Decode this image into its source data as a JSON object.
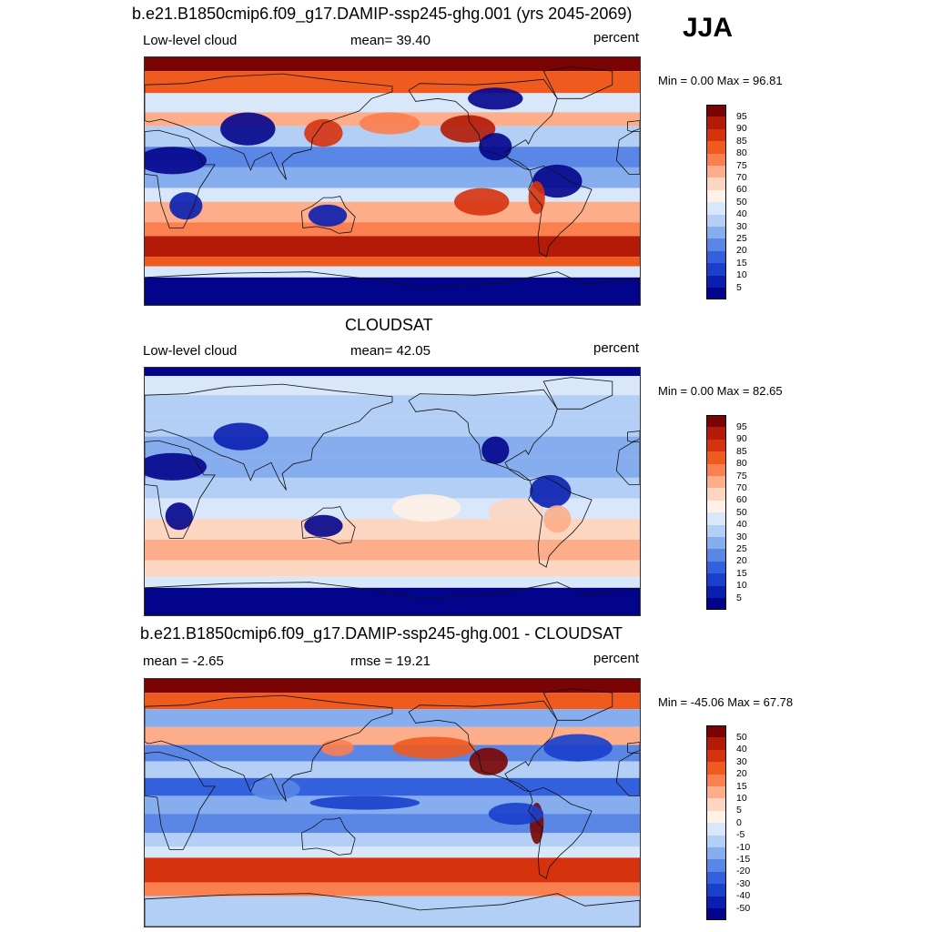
{
  "season": "JJA",
  "panels": [
    {
      "title": "b.e21.B1850cmip6.f09_g17.DAMIP-ssp245-ghg.001 (yrs 2045-2069)",
      "left_label": "Low-level cloud",
      "center_label": "mean=  39.40",
      "units": "percent",
      "minmax": "Min =   0.00 Max =  96.81",
      "colorbar_labels": [
        "95",
        "90",
        "85",
        "80",
        "75",
        "70",
        "60",
        "50",
        "40",
        "30",
        "25",
        "20",
        "15",
        "10",
        "5"
      ]
    },
    {
      "title": "CLOUDSAT",
      "left_label": "Low-level cloud",
      "center_label": "mean=  42.05",
      "units": "percent",
      "minmax": "Min =   0.00 Max =  82.65",
      "colorbar_labels": [
        "95",
        "90",
        "85",
        "80",
        "75",
        "70",
        "60",
        "50",
        "40",
        "30",
        "25",
        "20",
        "15",
        "10",
        "5"
      ]
    },
    {
      "title": "b.e21.B1850cmip6.f09_g17.DAMIP-ssp245-ghg.001 - CLOUDSAT",
      "left_label": "mean =  -2.65",
      "center_label": "rmse =  19.21",
      "units": "percent",
      "minmax": "Min = -45.06 Max =  67.78",
      "colorbar_labels": [
        "50",
        "40",
        "30",
        "20",
        "15",
        "10",
        "5",
        "0",
        "-5",
        "-10",
        "-15",
        "-20",
        "-30",
        "-40",
        "-50"
      ]
    }
  ],
  "colors": {
    "palette": [
      "#7a0403",
      "#b31a07",
      "#d6320d",
      "#ef5a1e",
      "#fa8050",
      "#fdad8a",
      "#fdd6c2",
      "#fff1e6",
      "#d8e7fa",
      "#b3cff5",
      "#86adee",
      "#5a86e6",
      "#3360dc",
      "#1a3fcc",
      "#0a1fb0",
      "#03048c"
    ]
  },
  "chart_data": [
    {
      "type": "heatmap",
      "title": "b.e21.B1850cmip6.f09_g17.DAMIP-ssp245-ghg.001 (yrs 2045-2069)",
      "variable": "Low-level cloud",
      "units": "percent",
      "mean": 39.4,
      "min": 0.0,
      "max": 96.81,
      "levels": [
        5,
        10,
        15,
        20,
        25,
        30,
        40,
        50,
        60,
        70,
        75,
        80,
        85,
        90,
        95
      ],
      "latitudes": [
        80,
        60,
        40,
        20,
        0,
        -20,
        -40,
        -60,
        -80
      ],
      "zonal_mean_values": [
        85,
        60,
        50,
        35,
        25,
        45,
        88,
        85,
        10
      ]
    },
    {
      "type": "heatmap",
      "title": "CLOUDSAT",
      "variable": "Low-level cloud",
      "units": "percent",
      "mean": 42.05,
      "min": 0.0,
      "max": 82.65,
      "levels": [
        5,
        10,
        15,
        20,
        25,
        30,
        40,
        50,
        60,
        70,
        75,
        80,
        85,
        90,
        95
      ],
      "latitudes": [
        80,
        60,
        40,
        20,
        0,
        -20,
        -40,
        -60,
        -80
      ],
      "zonal_mean_values": [
        40,
        40,
        30,
        30,
        35,
        55,
        60,
        55,
        10
      ]
    },
    {
      "type": "heatmap",
      "title": "b.e21.B1850cmip6.f09_g17.DAMIP-ssp245-ghg.001 - CLOUDSAT",
      "units": "percent",
      "mean": -2.65,
      "rmse": 19.21,
      "min": -45.06,
      "max": 67.78,
      "levels": [
        -50,
        -40,
        -30,
        -20,
        -15,
        -10,
        -5,
        0,
        5,
        10,
        15,
        20,
        30,
        40,
        50
      ],
      "latitudes": [
        80,
        60,
        40,
        20,
        0,
        -20,
        -40,
        -60,
        -80
      ],
      "zonal_mean_values": [
        45,
        -10,
        15,
        -15,
        -20,
        -15,
        30,
        35,
        0
      ]
    }
  ]
}
